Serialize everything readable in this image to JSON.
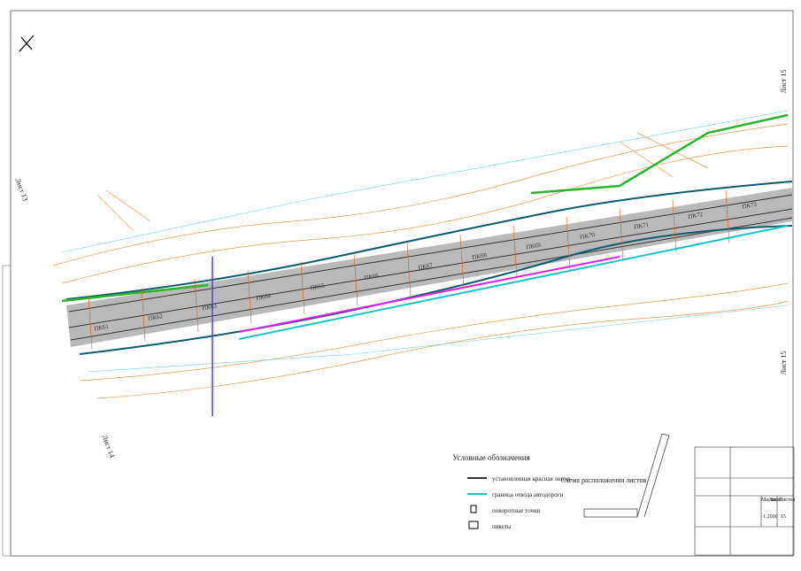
{
  "sheet_labels": {
    "top_right": "Лист 15",
    "bottom_right": "Лист 15",
    "left": "Лист 13",
    "bottom_left": "Лист 14"
  },
  "pickets": [
    "ПК61",
    "ПК62",
    "ПК63",
    "ПК64",
    "ПК65",
    "ПК66",
    "ПК67",
    "ПК68",
    "ПК69",
    "ПК70",
    "ПК71",
    "ПК72",
    "ПК73"
  ],
  "legend": {
    "title": "Условные обозначения",
    "items": [
      "установленная красная линия",
      "граница отвода автодороги",
      "поворотные точки",
      "пикеты"
    ]
  },
  "scheme": {
    "title": "Схема расположения листов"
  },
  "title_block": {
    "scale_header": "Масштаб",
    "sheet_header": "Лист",
    "sheets_header": "Листов",
    "scale": "1:2000",
    "sheet": "15"
  }
}
